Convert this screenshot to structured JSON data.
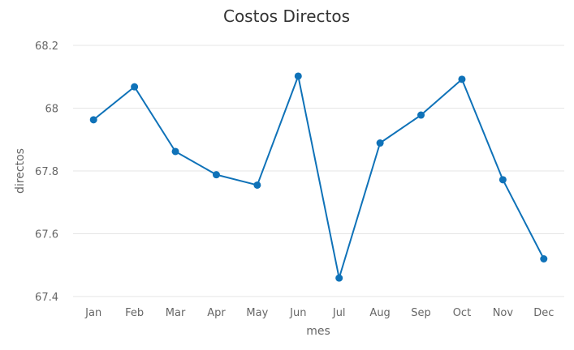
{
  "chart_data": {
    "type": "line",
    "title": "Costos Directos",
    "xlabel": "mes",
    "ylabel": "directos",
    "categories": [
      "Jan",
      "Feb",
      "Mar",
      "Apr",
      "May",
      "Jun",
      "Jul",
      "Aug",
      "Sep",
      "Oct",
      "Nov",
      "Dec"
    ],
    "series": [
      {
        "values": [
          67.963,
          68.068,
          67.862,
          67.788,
          67.755,
          68.102,
          67.459,
          67.889,
          67.978,
          68.092,
          67.772,
          67.52
        ],
        "color": "#0f72b8"
      }
    ],
    "ylim": [
      67.4,
      68.2
    ],
    "yticks": [
      "67.4",
      "67.6",
      "67.8",
      "68",
      "68.2"
    ],
    "grid": true,
    "legend": "none"
  }
}
